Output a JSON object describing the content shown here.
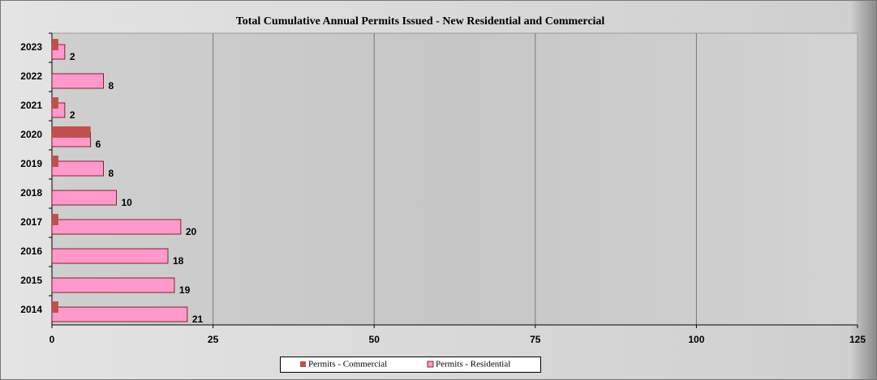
{
  "chart_data": {
    "type": "bar",
    "orientation": "horizontal",
    "title": "Total Cumulative Annual Permits Issued - New Residential and Commercial",
    "categories": [
      "2023",
      "2022",
      "2021",
      "2020",
      "2019",
      "2018",
      "2017",
      "2016",
      "2015",
      "2014"
    ],
    "series": [
      {
        "name": "Permits - Commercial",
        "color": "#c0504d",
        "values": [
          1,
          0,
          1,
          6,
          1,
          0,
          1,
          0,
          0,
          1
        ],
        "data_labels": false
      },
      {
        "name": "Permits - Residential",
        "color": "#ff99cc",
        "values": [
          2,
          8,
          2,
          6,
          8,
          10,
          20,
          18,
          19,
          21
        ],
        "data_labels": true
      }
    ],
    "xlim": [
      0,
      125
    ],
    "xticks": [
      0,
      25,
      50,
      75,
      100,
      125
    ],
    "grid": true,
    "legend": "bottom"
  }
}
